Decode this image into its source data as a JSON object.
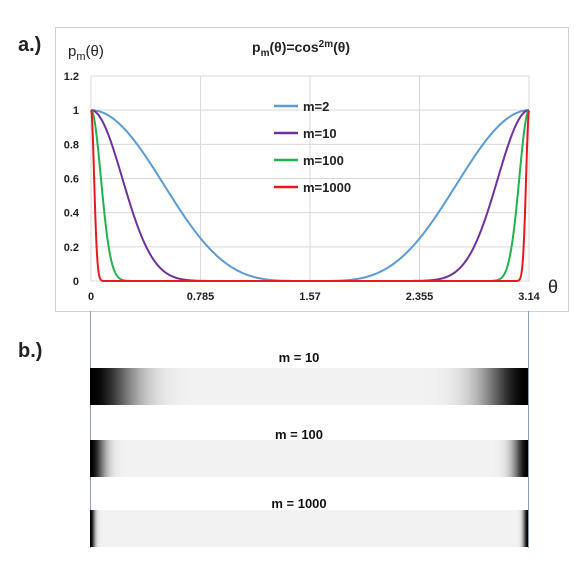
{
  "labels": {
    "panel_a": "a.)",
    "panel_b": "b.)"
  },
  "chart_data": {
    "type": "line",
    "title": "pm(θ)=cos2m(θ)",
    "title_parts": {
      "p": "p",
      "m_sub": "m",
      "mid": "(θ)=cos",
      "exp": "2m",
      "end": "(θ)"
    },
    "ylabel_parts": {
      "p": "p",
      "m_sub": "m",
      "end": "(θ)"
    },
    "xlabel": "θ",
    "xlim": [
      0,
      3.14
    ],
    "ylim": [
      0,
      1.2
    ],
    "x_ticks": [
      "0",
      "0.785",
      "1.57",
      "2.355",
      "3.14"
    ],
    "x_tick_values": [
      0,
      0.785,
      1.57,
      2.355,
      3.14
    ],
    "y_ticks": [
      "0",
      "0.2",
      "0.4",
      "0.6",
      "0.8",
      "1",
      "1.2"
    ],
    "y_tick_values": [
      0,
      0.2,
      0.4,
      0.6,
      0.8,
      1,
      1.2
    ],
    "grid": true,
    "legend_position": "center",
    "series": [
      {
        "name": "m=2",
        "m": 2,
        "color": "#5b9bd5"
      },
      {
        "name": "m=10",
        "m": 10,
        "color": "#7030a0"
      },
      {
        "name": "m=100",
        "m": 100,
        "color": "#22b24c"
      },
      {
        "name": "m=1000",
        "m": 1000,
        "color": "#e8191c"
      }
    ]
  },
  "intensity_bars": [
    {
      "title": "m = 10",
      "m": 10
    },
    {
      "title": "m = 100",
      "m": 100
    },
    {
      "title": "m = 1000",
      "m": 1000
    }
  ]
}
